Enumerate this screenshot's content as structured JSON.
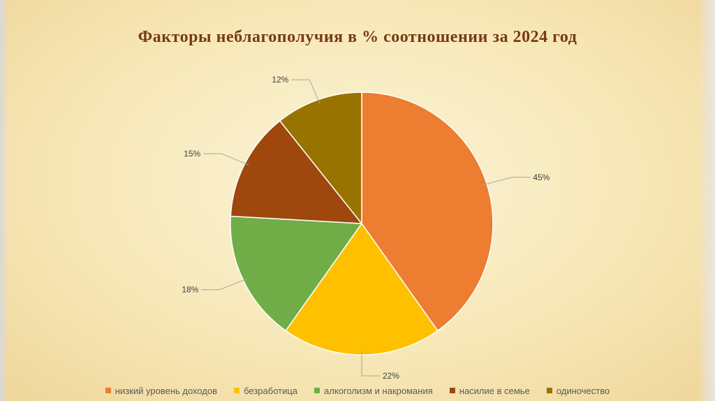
{
  "chart_data": {
    "type": "pie",
    "title": "Факторы неблагополучия в % соотношении за 2024 год",
    "categories": [
      "низкий уровень доходов",
      "безработица",
      "алкоголизм и накромания",
      "насилие в семье",
      "одиночество"
    ],
    "values": [
      45,
      22,
      18,
      15,
      12
    ],
    "data_labels": [
      "45%",
      "22%",
      "18%",
      "15%",
      "12%"
    ],
    "colors": [
      "#ED7D31",
      "#FFC000",
      "#70AD47",
      "#9E480E",
      "#997300"
    ],
    "legend_position": "bottom"
  }
}
